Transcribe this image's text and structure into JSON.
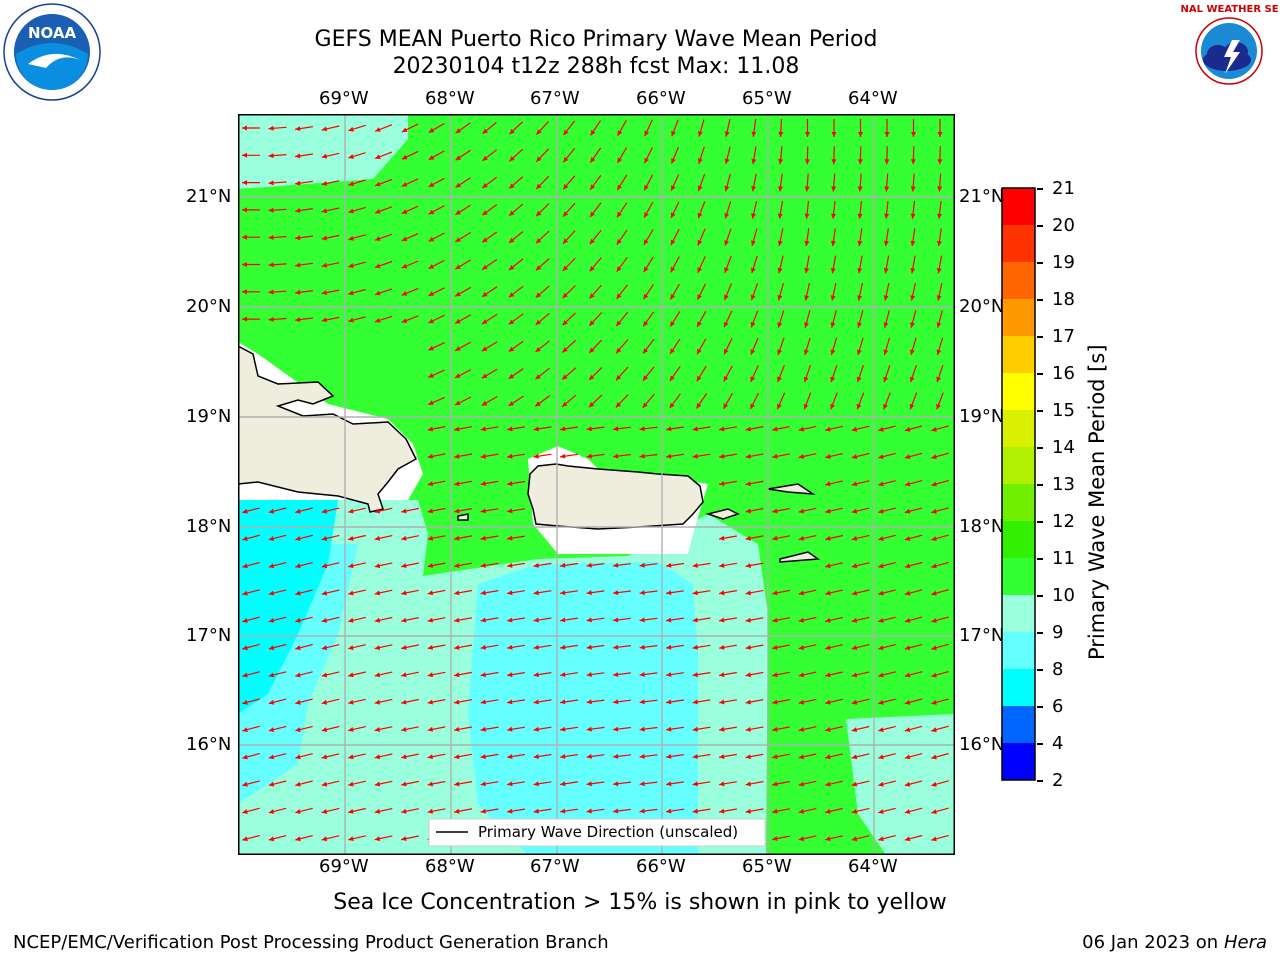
{
  "title": {
    "line1": "GEFS MEAN Puerto Rico Primary Wave Mean Period",
    "line2": "20230104 t12z 288h fcst   Max: 11.08"
  },
  "map": {
    "lon_ticks": [
      "69°W",
      "68°W",
      "67°W",
      "66°W",
      "65°W",
      "64°W"
    ],
    "lat_ticks": [
      "21°N",
      "20°N",
      "19°N",
      "18°N",
      "17°N",
      "16°N"
    ],
    "legend_label": "Primary Wave Direction (unscaled)",
    "arrow_color": "#ff0000",
    "land_color": "#efedde"
  },
  "colorbar": {
    "label": "Primary Wave Mean Period [s]",
    "ticks": [
      "21",
      "20",
      "19",
      "18",
      "17",
      "16",
      "15",
      "14",
      "13",
      "12",
      "11",
      "10",
      "9",
      "8",
      "6",
      "4",
      "2"
    ],
    "colors": [
      "#ff0000",
      "#ff3300",
      "#ff6600",
      "#ff9900",
      "#ffcc00",
      "#ffff00",
      "#d9f000",
      "#b0f000",
      "#70f000",
      "#33f000",
      "#33ff33",
      "#99ffdd",
      "#66ffff",
      "#00ffff",
      "#0066ff",
      "#0000ff"
    ]
  },
  "caption": "Sea Ice Concentration > 15% is shown in pink to yellow",
  "footer": {
    "left": "NCEP/EMC/Verification Post Processing Product Generation Branch",
    "right_prefix": "06 Jan 2023 on ",
    "right_host": "Hera"
  },
  "logos": {
    "noaa_text": "NOAA",
    "nws_text": "NATIONAL WEATHER SERVICE"
  }
}
